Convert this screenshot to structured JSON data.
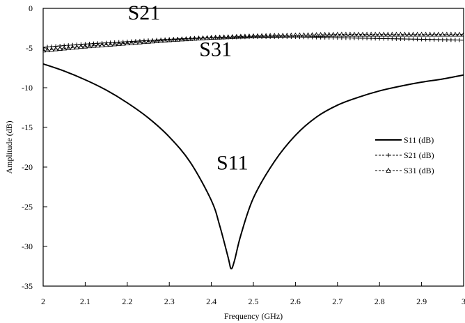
{
  "chart_data": {
    "type": "line",
    "xlabel": "Frequency (GHz)",
    "ylabel": "Amplitude (dB)",
    "xlim": [
      2,
      3
    ],
    "ylim": [
      -35,
      0
    ],
    "xticks": [
      2,
      2.1,
      2.2,
      2.3,
      2.4,
      2.5,
      2.6,
      2.7,
      2.8,
      2.9,
      3
    ],
    "yticks": [
      0,
      -5,
      -10,
      -15,
      -20,
      -25,
      -30,
      -35
    ],
    "xtick_labels": [
      "2",
      "2.1",
      "2.2",
      "2.3",
      "2.4",
      "2.5",
      "2.6",
      "2.7",
      "2.8",
      "2.9",
      "3"
    ],
    "ytick_labels": [
      "0",
      "-5",
      "-10",
      "-15",
      "-20",
      "-25",
      "-30",
      "-35"
    ],
    "legend_position": "right-middle",
    "grid": false,
    "series": [
      {
        "name": "S11 (dB)",
        "marker": "none",
        "color": "#000000",
        "x": [
          2.0,
          2.05,
          2.1,
          2.15,
          2.2,
          2.25,
          2.3,
          2.35,
          2.4,
          2.42,
          2.44,
          2.447,
          2.455,
          2.47,
          2.5,
          2.55,
          2.6,
          2.65,
          2.7,
          2.75,
          2.8,
          2.85,
          2.9,
          2.95,
          3.0
        ],
        "y": [
          -7.0,
          -7.9,
          -9.0,
          -10.3,
          -11.9,
          -13.8,
          -16.2,
          -19.4,
          -24.2,
          -27.4,
          -31.4,
          -32.8,
          -31.8,
          -28.6,
          -23.9,
          -19.3,
          -16.0,
          -13.7,
          -12.2,
          -11.2,
          -10.4,
          -9.8,
          -9.3,
          -8.9,
          -8.4
        ]
      },
      {
        "name": "S21 (dB)",
        "marker": "plus",
        "color": "#000000",
        "x": [
          2.0,
          2.1,
          2.2,
          2.3,
          2.4,
          2.5,
          2.6,
          2.7,
          2.8,
          2.9,
          3.0
        ],
        "y": [
          -4.9,
          -4.5,
          -4.2,
          -3.9,
          -3.7,
          -3.6,
          -3.6,
          -3.7,
          -3.8,
          -3.9,
          -4.0
        ]
      },
      {
        "name": "S31 (dB)",
        "marker": "triangle",
        "color": "#000000",
        "x": [
          2.0,
          2.1,
          2.2,
          2.3,
          2.4,
          2.5,
          2.6,
          2.7,
          2.8,
          2.9,
          3.0
        ],
        "y": [
          -5.3,
          -4.8,
          -4.4,
          -4.0,
          -3.7,
          -3.5,
          -3.4,
          -3.3,
          -3.3,
          -3.3,
          -3.3
        ]
      }
    ],
    "annotations": [
      {
        "text": "S21",
        "x": 2.24,
        "y": -1.4
      },
      {
        "text": "S31",
        "x": 2.41,
        "y": -6.0
      },
      {
        "text": "S11",
        "x": 2.45,
        "y": -20.3
      }
    ]
  }
}
